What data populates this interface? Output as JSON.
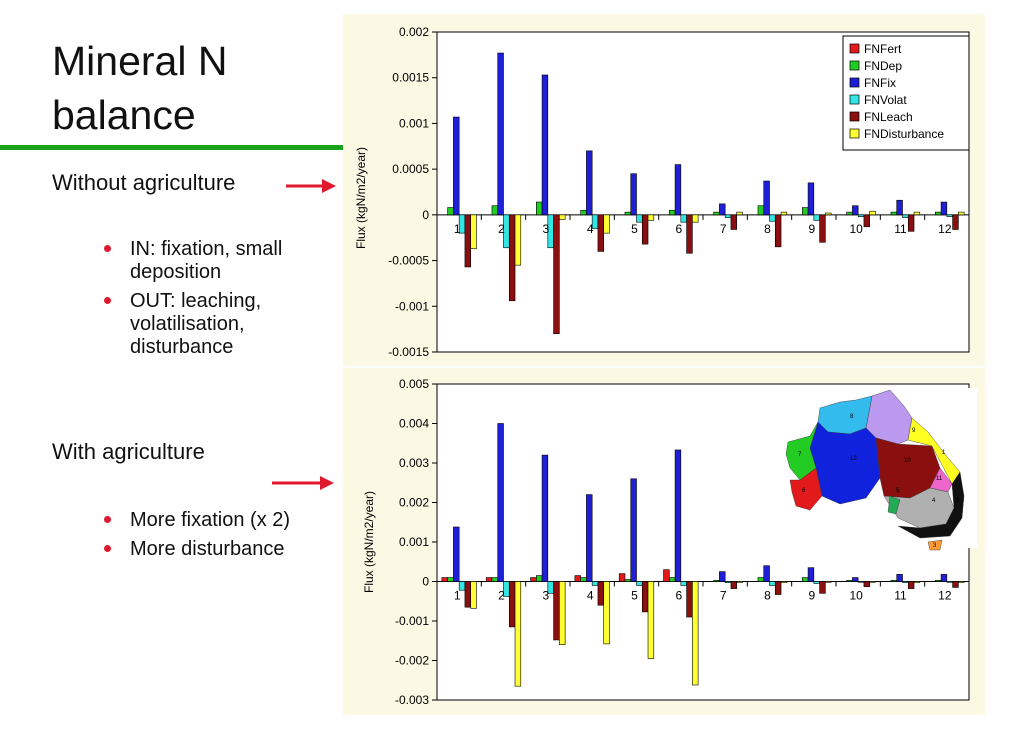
{
  "slide": {
    "title_lines": [
      "Mineral N",
      "balance"
    ],
    "section1": "Without agriculture",
    "bullets1": [
      "IN: fixation, small deposition",
      "OUT: leaching, volatilisation, disturbance"
    ],
    "section2": "With agriculture",
    "bullets2": [
      "More fixation (x 2)",
      "More disturbance"
    ],
    "colors": {
      "rule": "#1aa31a",
      "arrow": "#e0192e",
      "bullet": "#e0192e"
    }
  },
  "series_colors": [
    "#e31a1c",
    "#22cc22",
    "#1f1fd6",
    "#33e6e6",
    "#8b0f0f",
    "#ffff33"
  ],
  "legend_position": "top-right",
  "map": {
    "regions": [
      {
        "label": "1",
        "color": "#ffff22"
      },
      {
        "label": "2",
        "color": "#111111"
      },
      {
        "label": "3",
        "color": "#ff9933"
      },
      {
        "label": "4",
        "color": "#b0b0b0"
      },
      {
        "label": "5",
        "color": "#22aa55"
      },
      {
        "label": "6",
        "color": "#e31a1c"
      },
      {
        "label": "7",
        "color": "#22cc22"
      },
      {
        "label": "8",
        "color": "#33bbee"
      },
      {
        "label": "9",
        "color": "#bb99ee"
      },
      {
        "label": "10",
        "color": "#8b0f0f"
      },
      {
        "label": "11",
        "color": "#ee66cc"
      },
      {
        "label": "12",
        "color": "#1122dd"
      }
    ]
  },
  "chart_data": [
    {
      "type": "bar",
      "title": "",
      "xlabel": "",
      "ylabel": "Flux (kgN/m2/year)",
      "ylim": [
        -0.0015,
        0.002
      ],
      "yticks": [
        -0.0015,
        -0.001,
        -0.0005,
        0,
        0.0005,
        0.001,
        0.0015,
        0.002
      ],
      "ytick_labels": [
        "-0.0015",
        "-0.001",
        "-0.0005",
        "0",
        "0.0005",
        "0.001",
        "0.0015",
        "0.002"
      ],
      "grid": false,
      "legend": true,
      "categories": [
        "1",
        "2",
        "3",
        "4",
        "5",
        "6",
        "7",
        "8",
        "9",
        "10",
        "11",
        "12"
      ],
      "series": [
        {
          "name": "FNFert",
          "values": [
            0,
            0,
            0,
            0,
            0,
            0,
            0,
            0,
            0,
            0,
            0,
            0
          ]
        },
        {
          "name": "FNDep",
          "values": [
            8e-05,
            0.0001,
            0.00014,
            5e-05,
            3e-05,
            5e-05,
            3e-05,
            0.0001,
            8e-05,
            3e-05,
            3e-05,
            3e-05
          ]
        },
        {
          "name": "FNFix",
          "values": [
            0.00107,
            0.00177,
            0.00153,
            0.0007,
            0.00045,
            0.00055,
            0.00012,
            0.00037,
            0.00035,
            0.0001,
            0.00016,
            0.00014
          ]
        },
        {
          "name": "FNVolat",
          "values": [
            -0.0002,
            -0.00036,
            -0.00036,
            -0.00015,
            -8e-05,
            -8e-05,
            -3e-05,
            -7e-05,
            -6e-05,
            -2e-05,
            -3e-05,
            -2e-05
          ]
        },
        {
          "name": "FNLeach",
          "values": [
            -0.00057,
            -0.00094,
            -0.0013,
            -0.0004,
            -0.00032,
            -0.00042,
            -0.00016,
            -0.00035,
            -0.0003,
            -0.00013,
            -0.00018,
            -0.00016
          ]
        },
        {
          "name": "FNDisturbance",
          "values": [
            -0.00037,
            -0.00055,
            -5e-05,
            -0.0002,
            -6e-05,
            -8e-05,
            3e-05,
            3e-05,
            2e-05,
            4e-05,
            3e-05,
            3e-05
          ]
        }
      ]
    },
    {
      "type": "bar",
      "title": "",
      "xlabel": "",
      "ylabel": "Flux (kgN/m2/year)",
      "ylim": [
        -0.003,
        0.005
      ],
      "yticks": [
        -0.003,
        -0.002,
        -0.001,
        0,
        0.001,
        0.002,
        0.003,
        0.004,
        0.005
      ],
      "ytick_labels": [
        "-0.003",
        "-0.002",
        "-0.001",
        "0",
        "0.001",
        "0.002",
        "0.003",
        "0.004",
        "0.005"
      ],
      "grid": false,
      "legend": false,
      "categories": [
        "1",
        "2",
        "3",
        "4",
        "5",
        "6",
        "7",
        "8",
        "9",
        "10",
        "11",
        "12"
      ],
      "series": [
        {
          "name": "FNFert",
          "values": [
            0.0001,
            0.0001,
            0.0001,
            0.00015,
            0.0002,
            0.0003,
            0,
            0,
            0,
            0,
            0,
            0
          ]
        },
        {
          "name": "FNDep",
          "values": [
            0.0001,
            0.0001,
            0.00015,
            0.0001,
            5e-05,
            0.0001,
            3e-05,
            0.0001,
            0.0001,
            3e-05,
            3e-05,
            3e-05
          ]
        },
        {
          "name": "FNFix",
          "values": [
            0.00138,
            0.004,
            0.0032,
            0.0022,
            0.0026,
            0.00333,
            0.00025,
            0.0004,
            0.00035,
            0.0001,
            0.00018,
            0.00018
          ]
        },
        {
          "name": "FNVolat",
          "values": [
            -0.00022,
            -0.00038,
            -0.0003,
            -0.0001,
            -0.0001,
            -0.0001,
            -3e-05,
            -0.0001,
            -5e-05,
            -2e-05,
            -3e-05,
            -2e-05
          ]
        },
        {
          "name": "FNLeach",
          "values": [
            -0.00065,
            -0.00115,
            -0.00148,
            -0.0006,
            -0.00077,
            -0.0009,
            -0.00018,
            -0.00033,
            -0.0003,
            -0.00013,
            -0.00018,
            -0.00015
          ]
        },
        {
          "name": "FNDisturbance",
          "values": [
            -0.00068,
            -0.00265,
            -0.0016,
            -0.00158,
            -0.00195,
            -0.00262,
            -3e-05,
            -3e-05,
            -2e-05,
            -2e-05,
            -3e-05,
            -3e-05
          ]
        }
      ]
    }
  ]
}
